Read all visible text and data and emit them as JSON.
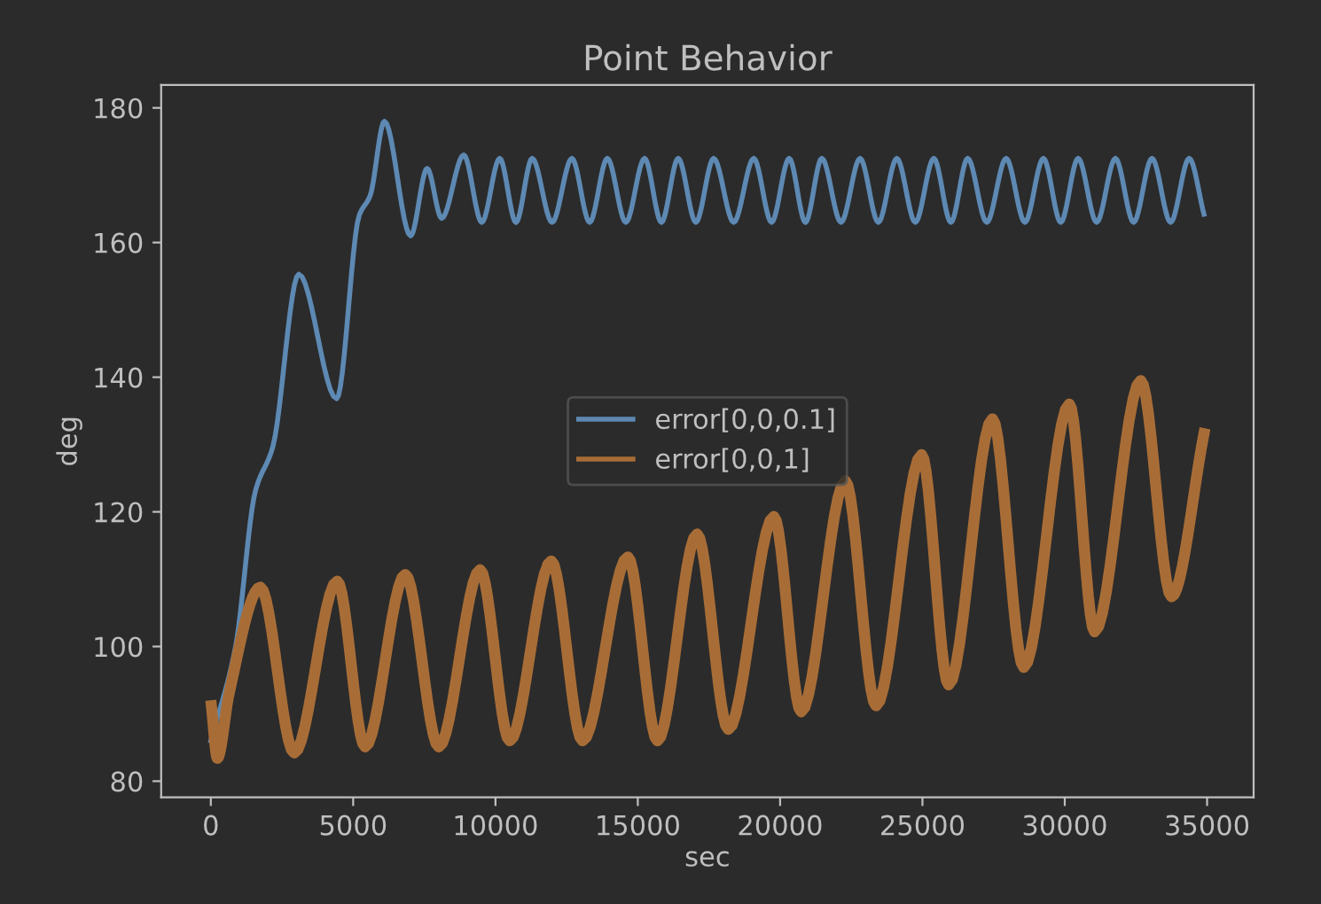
{
  "chart_data": {
    "type": "line",
    "title": "Point Behavior",
    "xlabel": "sec",
    "ylabel": "deg",
    "xlim": [
      -1745,
      36635
    ],
    "ylim": [
      77.6,
      183.4
    ],
    "xticks": [
      0,
      5000,
      10000,
      15000,
      20000,
      25000,
      30000,
      35000
    ],
    "yticks": [
      80,
      100,
      120,
      140,
      160,
      180
    ],
    "grid": false,
    "legend": "center",
    "marker": "none",
    "line_style": "solid",
    "series": [
      {
        "name": "error[0,0,0.1]",
        "color": "#5d89b3",
        "x": [
          0,
          870,
          1560,
          2180,
          3090,
          4420,
          5210,
          5600,
          6100,
          7020,
          7600,
          8110,
          8886,
          9520,
          10150,
          10720,
          11290,
          11990,
          12685,
          13310,
          13930,
          14580,
          15238,
          15830,
          16420,
          17040,
          17666,
          18370,
          19074,
          19700,
          20319,
          20890,
          21465,
          22140,
          22810,
          23450,
          24100,
          24750,
          25400,
          26000,
          26590,
          27260,
          27940,
          28600,
          29250,
          29860,
          30470,
          31120,
          31780,
          32420,
          33065,
          33720,
          34370,
          34890
        ],
        "values": [
          86,
          100,
          123,
          129.7,
          155.3,
          136.8,
          164,
          167,
          178,
          161,
          171,
          163.6,
          173,
          163,
          172.5,
          163,
          172.5,
          163,
          172.5,
          163,
          172.5,
          163,
          172.5,
          163,
          172.5,
          163,
          172.5,
          163,
          172.5,
          163,
          172.5,
          163,
          172.5,
          163,
          172.5,
          163,
          172.5,
          163,
          172.5,
          163,
          172.5,
          163,
          172.5,
          163,
          172.5,
          163,
          172.5,
          163,
          172.5,
          163,
          172.5,
          163,
          172.5,
          164.2
        ]
      },
      {
        "name": "error[0,0,1]",
        "color": "#a86d37",
        "x": [
          20,
          230,
          640,
          1740,
          2930,
          4440,
          5420,
          6830,
          8010,
          9460,
          10500,
          11960,
          13060,
          14650,
          15690,
          17080,
          18180,
          19780,
          20740,
          22290,
          23370,
          24970,
          25920,
          27460,
          28560,
          30160,
          31050,
          32670,
          33750,
          34890
        ],
        "values": [
          91.2,
          83.4,
          93,
          108.8,
          84.2,
          109.7,
          85.1,
          110.7,
          85.1,
          111.4,
          86,
          112.7,
          86,
          113.3,
          86,
          116.7,
          87.7,
          119.3,
          90.3,
          124.6,
          91.2,
          128.5,
          94.3,
          133.8,
          96.9,
          136,
          102.2,
          139.5,
          107.4,
          131.6
        ]
      }
    ]
  }
}
